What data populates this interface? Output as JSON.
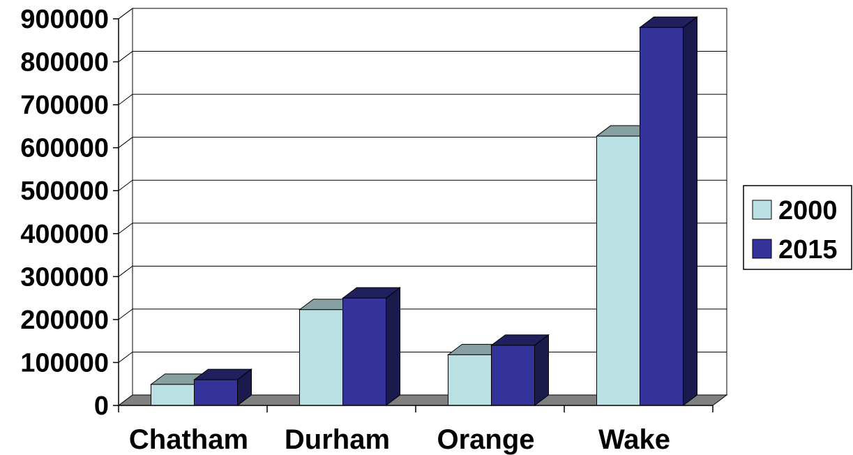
{
  "chart_data": {
    "type": "bar",
    "categories": [
      "Chatham",
      "Durham",
      "Orange",
      "Wake"
    ],
    "series": [
      {
        "name": "2000",
        "values": [
          49000,
          223000,
          118000,
          627000
        ],
        "color": "#bbe0e3"
      },
      {
        "name": "2015",
        "values": [
          60000,
          250000,
          140000,
          880000
        ],
        "color": "#333399"
      }
    ],
    "ylim": [
      0,
      900000
    ],
    "yticks": [
      0,
      100000,
      200000,
      300000,
      400000,
      500000,
      600000,
      700000,
      800000,
      900000
    ],
    "ytick_labels": [
      "0",
      "100000",
      "200000",
      "300000",
      "400000",
      "500000",
      "600000",
      "700000",
      "800000",
      "900000"
    ],
    "grid": true,
    "legend_position": "right",
    "floor_color": "#808080"
  }
}
